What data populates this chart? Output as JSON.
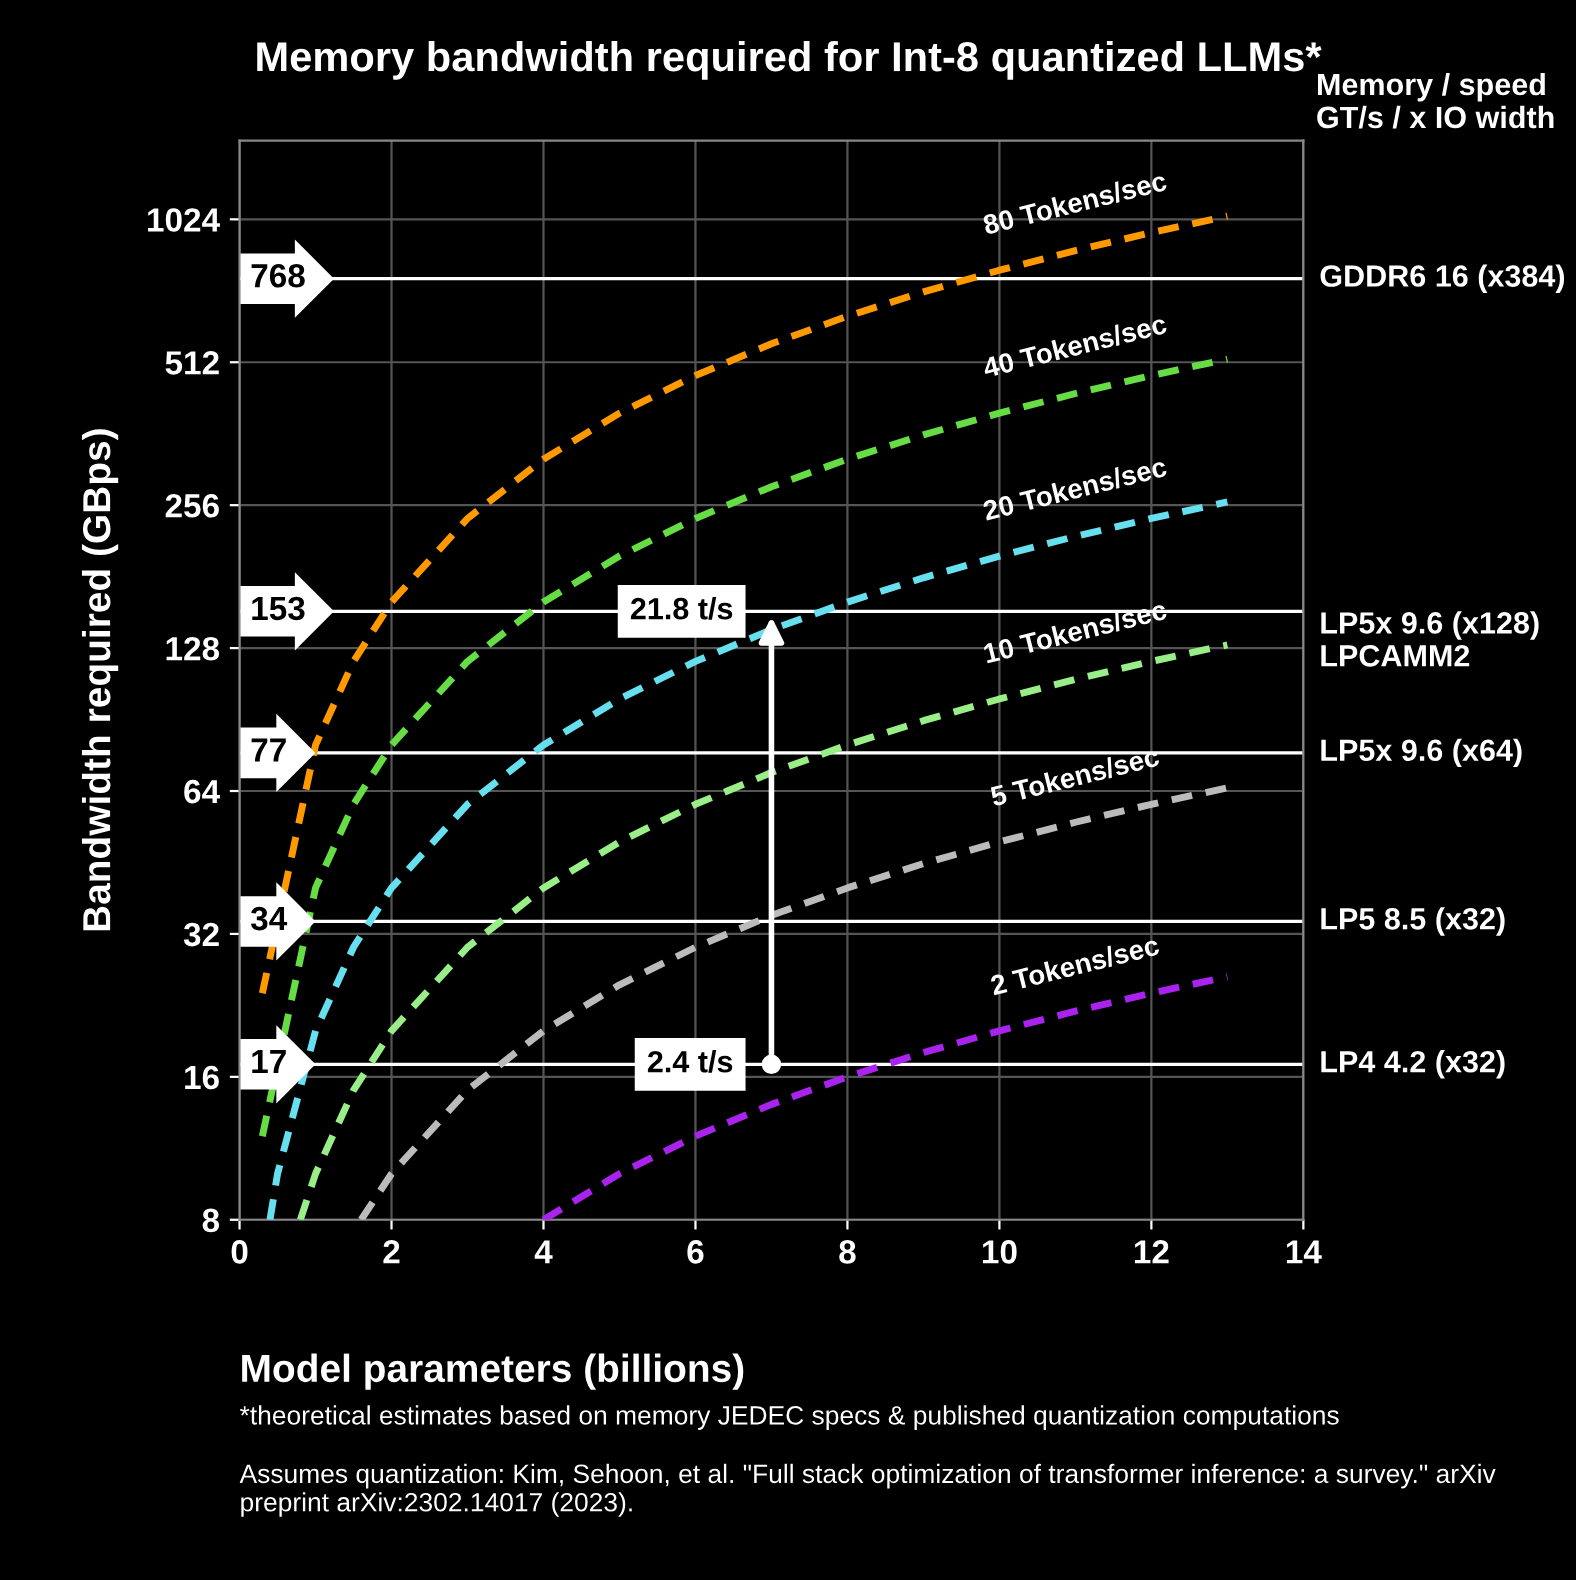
{
  "chart_data": {
    "type": "line",
    "title": "Memory bandwidth required for Int-8 quantized LLMs*",
    "xlabel": "Model parameters (billions)",
    "ylabel": "Bandwidth required (GBps)",
    "xlim": [
      0,
      14
    ],
    "xticks": [
      0,
      2,
      4,
      6,
      8,
      10,
      12,
      14
    ],
    "ylim": [
      8,
      1500
    ],
    "yticks": [
      8,
      16,
      32,
      64,
      128,
      256,
      512,
      1024
    ],
    "log": "y",
    "grid": true,
    "legend": false,
    "marker": "none",
    "line_style": "dashed",
    "series": [
      {
        "name": "80 Tokens/sec",
        "color": "#ff9900",
        "x": [
          0.3,
          1,
          1.5,
          2,
          3,
          4,
          5,
          6,
          7,
          8,
          9,
          10,
          11,
          12,
          13
        ],
        "values": [
          24,
          80,
          120,
          160,
          240,
          320,
          400,
          480,
          560,
          640,
          720,
          800,
          880,
          960,
          1040
        ]
      },
      {
        "name": "40 Tokens/sec",
        "color": "#66dd44",
        "x": [
          0.3,
          1,
          1.5,
          2,
          3,
          4,
          5,
          6,
          7,
          8,
          9,
          10,
          11,
          12,
          13
        ],
        "values": [
          12,
          40,
          60,
          80,
          120,
          160,
          200,
          240,
          280,
          320,
          360,
          400,
          440,
          480,
          520
        ]
      },
      {
        "name": "20 Tokens/sec",
        "color": "#66e0ee",
        "x": [
          0.4,
          0.5,
          1,
          1.5,
          2,
          3,
          4,
          5,
          6,
          7,
          8,
          9,
          10,
          11,
          12,
          13
        ],
        "values": [
          8,
          10,
          20,
          30,
          40,
          60,
          80,
          100,
          120,
          140,
          160,
          180,
          200,
          220,
          240,
          260
        ]
      },
      {
        "name": "10 Tokens/sec",
        "color": "#99ee88",
        "x": [
          0.8,
          1,
          1.5,
          2,
          3,
          4,
          5,
          6,
          7,
          8,
          9,
          10,
          11,
          12,
          13
        ],
        "values": [
          8,
          10,
          15,
          20,
          30,
          40,
          50,
          60,
          70,
          80,
          90,
          100,
          110,
          120,
          130
        ]
      },
      {
        "name": "5 Tokens/sec",
        "color": "#bbbbbb",
        "x": [
          1.6,
          2,
          3,
          4,
          5,
          6,
          7,
          8,
          9,
          10,
          11,
          12,
          13
        ],
        "values": [
          8,
          10,
          15,
          20,
          25,
          30,
          35,
          40,
          45,
          50,
          55,
          60,
          65
        ]
      },
      {
        "name": "2 Tokens/sec",
        "color": "#aa22ee",
        "x": [
          4,
          5,
          6,
          7,
          8,
          9,
          10,
          11,
          12,
          13
        ],
        "values": [
          8,
          10,
          12,
          14,
          16,
          18,
          20,
          22,
          24,
          26
        ]
      }
    ],
    "ref_lines": [
      {
        "axis": "y",
        "value": 768,
        "label": "GDDR6 16 (x384)",
        "color": "#ffffff"
      },
      {
        "axis": "y",
        "value": 153,
        "label": "LP5x 9.6 (x128)\nLPCAMM2",
        "color": "#ffffff"
      },
      {
        "axis": "y",
        "value": 77,
        "label": "LP5x 9.6 (x64)",
        "color": "#ffffff"
      },
      {
        "axis": "y",
        "value": 34,
        "label": "LP5 8.5 (x32)",
        "color": "#ffffff"
      },
      {
        "axis": "y",
        "value": 17,
        "label": "LP4 4.2 (x32)",
        "color": "#ffffff"
      }
    ],
    "annotations": [
      {
        "text": "768",
        "y": 768
      },
      {
        "text": "153",
        "y": 153
      },
      {
        "text": "77",
        "y": 77
      },
      {
        "text": "34",
        "y": 34
      },
      {
        "text": "17",
        "y": 17
      },
      {
        "text": "21.8 t/s",
        "x": 7,
        "y": 153
      },
      {
        "text": "2.4 t/s",
        "x": 7,
        "y": 17
      },
      "Memory / speed\nGT/s / x IO width",
      "*theoretical estimates based on memory JEDEC specs & published quantization computations",
      "Assumes quantization: Kim, Sehoon, et al. \"Full stack optimization of transformer inference: a survey.\" arXiv preprint arXiv:2302.14017 (2023)."
    ]
  }
}
